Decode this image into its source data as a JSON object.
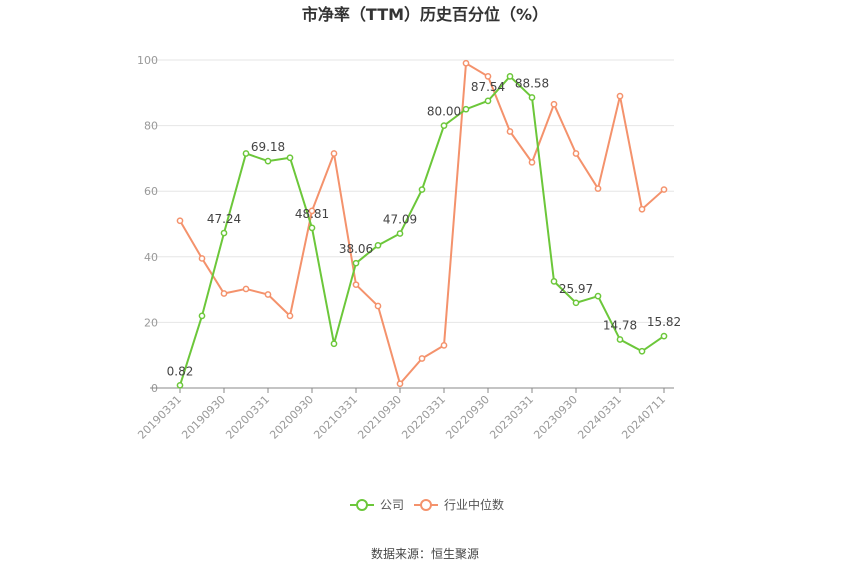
{
  "chart_data": {
    "type": "line",
    "title": "市净率（TTM）历史百分位（%）",
    "xlabel": "",
    "ylabel": "",
    "ylim": [
      0,
      100
    ],
    "yticks": [
      0,
      20,
      40,
      60,
      80,
      100
    ],
    "grid": true,
    "legend_position": "bottom",
    "x_tick_labels": [
      "20190331",
      "20190930",
      "20200331",
      "20200930",
      "20210331",
      "20210930",
      "20220331",
      "20220930",
      "20230331",
      "20230930",
      "20240331",
      "20240711"
    ],
    "series": [
      {
        "name": "公司",
        "color": "#6cc73a",
        "values": [
          0.82,
          22,
          47.24,
          71.5,
          69.18,
          70.2,
          48.81,
          13.5,
          38.06,
          43.5,
          47.09,
          60.5,
          80.0,
          85.0,
          87.54,
          95.0,
          88.58,
          32.5,
          25.97,
          28.0,
          14.78,
          11.2,
          15.82
        ]
      },
      {
        "name": "行业中位数",
        "color": "#f4926c",
        "values": [
          51,
          39.5,
          28.8,
          30.2,
          28.5,
          22,
          54,
          71.5,
          31.5,
          25,
          1.3,
          9,
          13,
          99,
          95,
          78.2,
          68.8,
          86.5,
          71.5,
          60.8,
          89,
          54.5,
          60.5
        ]
      }
    ],
    "data_labels": [
      {
        "index": 0,
        "text": "0.82"
      },
      {
        "index": 2,
        "text": "47.24"
      },
      {
        "index": 4,
        "text": "69.18"
      },
      {
        "index": 6,
        "text": "48.81"
      },
      {
        "index": 8,
        "text": "38.06"
      },
      {
        "index": 10,
        "text": "47.09"
      },
      {
        "index": 12,
        "text": "80.00"
      },
      {
        "index": 14,
        "text": "87.54"
      },
      {
        "index": 16,
        "text": "88.58"
      },
      {
        "index": 18,
        "text": "25.97"
      },
      {
        "index": 20,
        "text": "14.78"
      },
      {
        "index": 22,
        "text": "15.82"
      }
    ]
  },
  "footer": {
    "source": "数据来源：恒生聚源"
  }
}
